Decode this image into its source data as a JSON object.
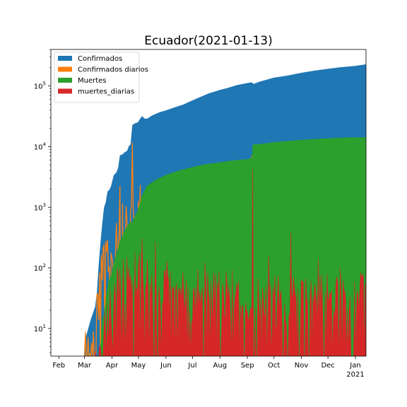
{
  "chart_data": {
    "type": "area",
    "title": "Ecuador(2021-01-13)",
    "xlabel": "",
    "ylabel": "",
    "yscale": "log",
    "ylim": [
      3.5,
      400000
    ],
    "xlim": [
      "2020-01-23",
      "2021-01-13"
    ],
    "legend_position": "top-left",
    "x_ticks": [
      {
        "date": "2020-02-01",
        "label": "Feb"
      },
      {
        "date": "2020-03-01",
        "label": "Mar"
      },
      {
        "date": "2020-04-01",
        "label": "Apr"
      },
      {
        "date": "2020-05-01",
        "label": "May"
      },
      {
        "date": "2020-06-01",
        "label": "Jun"
      },
      {
        "date": "2020-07-01",
        "label": "Jul"
      },
      {
        "date": "2020-08-01",
        "label": "Aug"
      },
      {
        "date": "2020-09-01",
        "label": "Sep"
      },
      {
        "date": "2020-10-01",
        "label": "Oct"
      },
      {
        "date": "2020-11-01",
        "label": "Nov"
      },
      {
        "date": "2020-12-01",
        "label": "Dec"
      },
      {
        "date": "2021-01-01",
        "label": "Jan",
        "sublabel": "2021"
      }
    ],
    "y_ticks": [
      {
        "value": 10,
        "base": "10",
        "exp": "1"
      },
      {
        "value": 100,
        "base": "10",
        "exp": "2"
      },
      {
        "value": 1000,
        "base": "10",
        "exp": "3"
      },
      {
        "value": 10000,
        "base": "10",
        "exp": "4"
      },
      {
        "value": 100000,
        "base": "10",
        "exp": "5"
      }
    ],
    "series": [
      {
        "name": "Confirmados",
        "color": "#1f77b4",
        "style": "area",
        "points": [
          [
            "2020-02-29",
            1
          ],
          [
            "2020-03-01",
            6
          ],
          [
            "2020-03-08",
            14
          ],
          [
            "2020-03-13",
            23
          ],
          [
            "2020-03-15",
            40
          ],
          [
            "2020-03-17",
            111
          ],
          [
            "2020-03-19",
            260
          ],
          [
            "2020-03-21",
            532
          ],
          [
            "2020-03-23",
            981
          ],
          [
            "2020-03-25",
            1211
          ],
          [
            "2020-03-27",
            1823
          ],
          [
            "2020-03-29",
            1924
          ],
          [
            "2020-03-31",
            2240
          ],
          [
            "2020-04-03",
            3368
          ],
          [
            "2020-04-06",
            3747
          ],
          [
            "2020-04-08",
            4450
          ],
          [
            "2020-04-10",
            7161
          ],
          [
            "2020-04-13",
            7466
          ],
          [
            "2020-04-16",
            8225
          ],
          [
            "2020-04-18",
            8450
          ],
          [
            "2020-04-20",
            10128
          ],
          [
            "2020-04-22",
            10850
          ],
          [
            "2020-04-24",
            22719
          ],
          [
            "2020-04-27",
            24258
          ],
          [
            "2020-04-30",
            25000
          ],
          [
            "2020-05-03",
            29071
          ],
          [
            "2020-05-05",
            31881
          ],
          [
            "2020-05-08",
            28818
          ],
          [
            "2020-05-11",
            29000
          ],
          [
            "2020-05-14",
            31000
          ],
          [
            "2020-05-17",
            33000
          ],
          [
            "2020-05-25",
            37000
          ],
          [
            "2020-06-01",
            39500
          ],
          [
            "2020-06-10",
            44000
          ],
          [
            "2020-06-20",
            49000
          ],
          [
            "2020-07-01",
            58000
          ],
          [
            "2020-07-10",
            66000
          ],
          [
            "2020-07-20",
            76000
          ],
          [
            "2020-08-01",
            86000
          ],
          [
            "2020-08-10",
            93000
          ],
          [
            "2020-08-20",
            103000
          ],
          [
            "2020-09-01",
            112000
          ],
          [
            "2020-09-06",
            115000
          ],
          [
            "2020-09-08",
            108000
          ],
          [
            "2020-09-15",
            118000
          ],
          [
            "2020-10-01",
            137000
          ],
          [
            "2020-10-15",
            147000
          ],
          [
            "2020-11-01",
            165000
          ],
          [
            "2020-11-15",
            178000
          ],
          [
            "2020-12-01",
            192000
          ],
          [
            "2020-12-15",
            204000
          ],
          [
            "2021-01-01",
            214000
          ],
          [
            "2021-01-13",
            228000
          ]
        ]
      },
      {
        "name": "Confirmados diarios",
        "color": "#ff7f0e",
        "style": "bars",
        "seed": 11,
        "envelope": [
          [
            "2020-02-29",
            5
          ],
          [
            "2020-03-08",
            4
          ],
          [
            "2020-03-13",
            7
          ],
          [
            "2020-03-17",
            40
          ],
          [
            "2020-03-21",
            110
          ],
          [
            "2020-03-25",
            250
          ],
          [
            "2020-03-31",
            240
          ],
          [
            "2020-04-10",
            500
          ],
          [
            "2020-04-20",
            400
          ],
          [
            "2020-05-01",
            600
          ],
          [
            "2020-05-15",
            500
          ],
          [
            "2020-06-01",
            600
          ],
          [
            "2020-07-01",
            800
          ],
          [
            "2020-08-01",
            900
          ],
          [
            "2020-09-01",
            900
          ],
          [
            "2020-10-01",
            900
          ],
          [
            "2020-11-01",
            1000
          ],
          [
            "2020-12-01",
            1000
          ],
          [
            "2021-01-13",
            1000
          ]
        ],
        "spikes": [
          [
            "2020-04-10",
            2200
          ],
          [
            "2020-04-24",
            11500
          ],
          [
            "2020-05-03",
            2300
          ],
          [
            "2020-06-20",
            1500
          ],
          [
            "2020-07-18",
            1700
          ],
          [
            "2020-08-05",
            1800
          ],
          [
            "2020-09-06",
            7000
          ],
          [
            "2020-09-20",
            2400
          ],
          [
            "2020-10-05",
            2200
          ],
          [
            "2020-11-06",
            2100
          ],
          [
            "2020-12-05",
            1900
          ],
          [
            "2021-01-13",
            1600
          ]
        ],
        "zeros_every": 6
      },
      {
        "name": "Muertes",
        "color": "#2ca02c",
        "style": "area",
        "points": [
          [
            "2020-03-13",
            2
          ],
          [
            "2020-03-15",
            3
          ],
          [
            "2020-03-19",
            5
          ],
          [
            "2020-03-21",
            14
          ],
          [
            "2020-03-23",
            18
          ],
          [
            "2020-03-25",
            29
          ],
          [
            "2020-03-28",
            62
          ],
          [
            "2020-03-31",
            75
          ],
          [
            "2020-04-03",
            120
          ],
          [
            "2020-04-08",
            220
          ],
          [
            "2020-04-10",
            272
          ],
          [
            "2020-04-15",
            403
          ],
          [
            "2020-04-20",
            540
          ],
          [
            "2020-04-24",
            576
          ],
          [
            "2020-04-30",
            883
          ],
          [
            "2020-05-05",
            1569
          ],
          [
            "2020-05-10",
            2200
          ],
          [
            "2020-05-15",
            2500
          ],
          [
            "2020-05-20",
            2800
          ],
          [
            "2020-06-01",
            3400
          ],
          [
            "2020-06-15",
            4000
          ],
          [
            "2020-07-01",
            4600
          ],
          [
            "2020-07-15",
            5100
          ],
          [
            "2020-08-01",
            5500
          ],
          [
            "2020-08-15",
            5900
          ],
          [
            "2020-09-01",
            6200
          ],
          [
            "2020-09-06",
            6500
          ],
          [
            "2020-09-07",
            10800
          ],
          [
            "2020-09-15",
            11000
          ],
          [
            "2020-10-01",
            11800
          ],
          [
            "2020-10-15",
            12300
          ],
          [
            "2020-11-01",
            12900
          ],
          [
            "2020-11-15",
            13300
          ],
          [
            "2020-12-01",
            13700
          ],
          [
            "2020-12-15",
            14000
          ],
          [
            "2021-01-13",
            14300
          ]
        ]
      },
      {
        "name": "muertes_diarias",
        "color": "#d62728",
        "style": "bars",
        "seed": 29,
        "envelope": [
          [
            "2020-03-13",
            2
          ],
          [
            "2020-03-21",
            8
          ],
          [
            "2020-03-31",
            20
          ],
          [
            "2020-04-10",
            60
          ],
          [
            "2020-04-20",
            80
          ],
          [
            "2020-05-05",
            70
          ],
          [
            "2020-06-01",
            40
          ],
          [
            "2020-07-01",
            40
          ],
          [
            "2020-08-01",
            35
          ],
          [
            "2020-09-01",
            35
          ],
          [
            "2020-10-01",
            30
          ],
          [
            "2020-11-01",
            30
          ],
          [
            "2020-12-01",
            35
          ],
          [
            "2021-01-13",
            40
          ]
        ],
        "spikes": [
          [
            "2020-04-10",
            100
          ],
          [
            "2020-05-05",
            300
          ],
          [
            "2020-05-20",
            270
          ],
          [
            "2020-06-02",
            130
          ],
          [
            "2020-07-15",
            120
          ],
          [
            "2020-08-15",
            90
          ],
          [
            "2020-09-07",
            4300
          ],
          [
            "2020-09-25",
            160
          ],
          [
            "2020-10-20",
            380
          ],
          [
            "2020-11-20",
            140
          ],
          [
            "2020-12-15",
            100
          ]
        ],
        "zeros_every": 5
      }
    ]
  }
}
